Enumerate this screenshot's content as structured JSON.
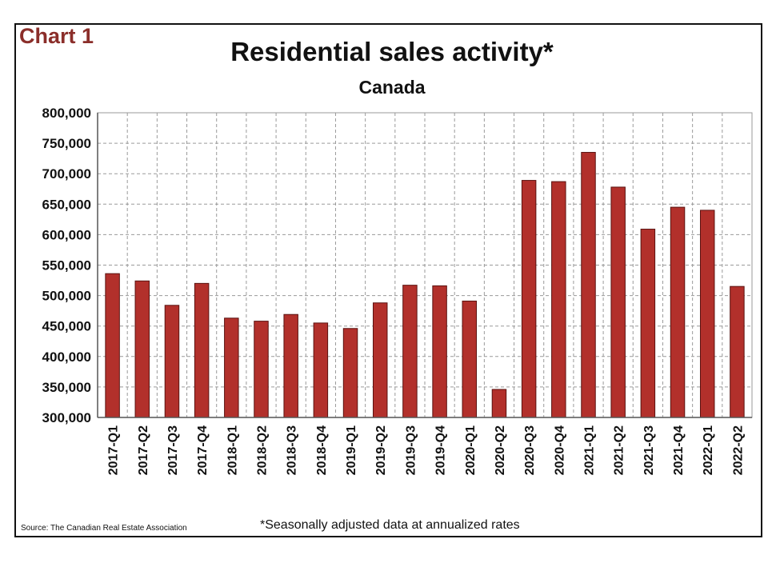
{
  "header": {
    "label": "Chart 1",
    "title": "Residential sales activity*",
    "subtitle": "Canada"
  },
  "footer": {
    "source": "Source: The Canadian Real Estate Association",
    "footnote": "*Seasonally adjusted data at annualized rates"
  },
  "colors": {
    "bar": "#b2302b",
    "bar_stroke": "#5a1210",
    "grid": "#9a9a9a",
    "border": "#111111"
  },
  "chart_data": {
    "type": "bar",
    "title": "Residential sales activity*",
    "subtitle": "Canada",
    "categories": [
      "2017-Q1",
      "2017-Q2",
      "2017-Q3",
      "2017-Q4",
      "2018-Q1",
      "2018-Q2",
      "2018-Q3",
      "2018-Q4",
      "2019-Q1",
      "2019-Q2",
      "2019-Q3",
      "2019-Q4",
      "2020-Q1",
      "2020-Q2",
      "2020-Q3",
      "2020-Q4",
      "2021-Q1",
      "2021-Q2",
      "2021-Q3",
      "2021-Q4",
      "2022-Q1",
      "2022-Q2"
    ],
    "values": [
      536000,
      524000,
      484000,
      520000,
      463000,
      458000,
      469000,
      455000,
      446000,
      488000,
      517000,
      516000,
      491000,
      346000,
      689000,
      687000,
      735000,
      678000,
      609000,
      645000,
      640000,
      515000
    ],
    "ylim": [
      300000,
      800000
    ],
    "yticks": [
      300000,
      350000,
      400000,
      450000,
      500000,
      550000,
      600000,
      650000,
      700000,
      750000,
      800000
    ],
    "ytick_labels": [
      "300,000",
      "350,000",
      "400,000",
      "450,000",
      "500,000",
      "550,000",
      "600,000",
      "650,000",
      "700,000",
      "750,000",
      "800,000"
    ],
    "grid": true,
    "xlabel": "",
    "ylabel": ""
  }
}
